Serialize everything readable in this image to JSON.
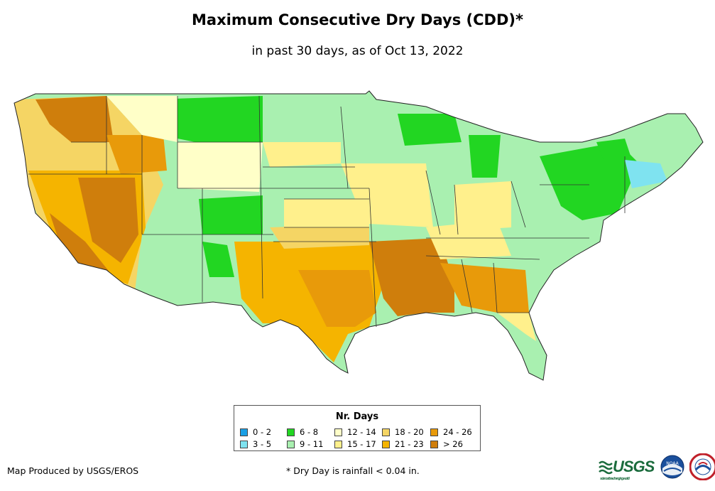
{
  "title": "Maximum Consecutive Dry Days (CDD)*",
  "subtitle": "in past 30 days, as of Oct 13, 2022",
  "legend": {
    "title": "Nr. Days",
    "items": [
      {
        "label": "0 - 2",
        "color": "#1aa0e6"
      },
      {
        "label": "3 - 5",
        "color": "#7fe3f0"
      },
      {
        "label": "6 - 8",
        "color": "#22d622"
      },
      {
        "label": "9 - 11",
        "color": "#a9f0b0"
      },
      {
        "label": "12 - 14",
        "color": "#ffffc8"
      },
      {
        "label": "15 - 17",
        "color": "#fff08c"
      },
      {
        "label": "18 - 20",
        "color": "#f5d564"
      },
      {
        "label": "21 - 23",
        "color": "#f5b400"
      },
      {
        "label": "24 - 26",
        "color": "#e89a0a"
      },
      {
        "label": "> 26",
        "color": "#cf7e0c"
      }
    ]
  },
  "producer": "Map Produced by USGS/EROS",
  "footnote": "* Dry Day is rainfall < 0.04 in.",
  "logos": {
    "usgs": "USGS",
    "usgs_tagline": "science for a changing world",
    "noaa": "NOAA"
  }
}
